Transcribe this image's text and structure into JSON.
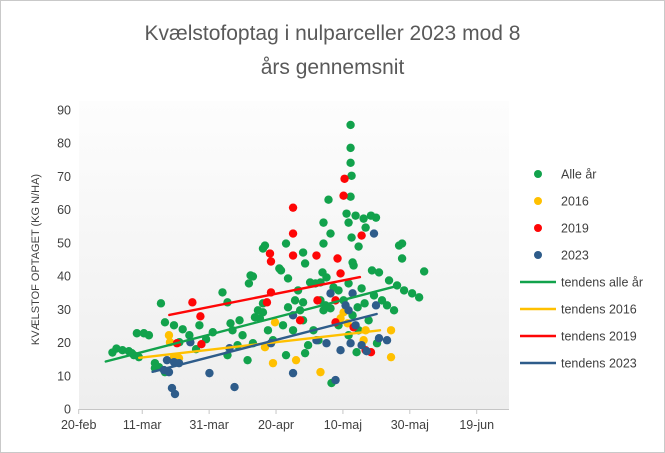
{
  "title": {
    "line1": "Kvælstofoptag i nulparceller 2023 mod 8",
    "line2": "års gennemsnit"
  },
  "colors": {
    "alle_ar": "#12a24c",
    "y2016": "#ffc000",
    "y2019": "#fe0606",
    "y2023": "#2e5c8a",
    "axis_line": "#c6c6c6",
    "tick_label": "#404040",
    "title_text": "#595959",
    "plot_fill_top": "#fdfdfd",
    "plot_fill_bottom": "#eeeeee"
  },
  "chart_data": {
    "type": "scatter",
    "title": "Kvælstofoptag i nulparceller 2023 mod 8 års gennemsnit",
    "xlabel": "",
    "ylabel": "KVÆLSTOF OPTAGET (KG N/HA)",
    "x_unit_note": "x = days since 20-feb",
    "x_tick_labels": [
      "20-feb",
      "11-mar",
      "31-mar",
      "20-apr",
      "10-maj",
      "30-maj",
      "19-jun"
    ],
    "x_tick_days": [
      0,
      19,
      39,
      59,
      79,
      99,
      119
    ],
    "xlim_days": [
      0,
      128
    ],
    "ylim": [
      0,
      90
    ],
    "y_ticks": [
      0,
      10,
      20,
      30,
      40,
      50,
      60,
      70,
      80,
      90
    ],
    "grid": false,
    "legend_position": "right",
    "series": [
      {
        "name": "Alle år",
        "kind": "scatter",
        "color": "#12a24c",
        "points": [
          [
            10,
            17
          ],
          [
            11.2,
            18.2
          ],
          [
            13,
            17.7
          ],
          [
            14.9,
            17.4
          ],
          [
            15.8,
            16.8
          ],
          [
            16.4,
            16.2
          ],
          [
            17.3,
            22.8
          ],
          [
            17.9,
            15.6
          ],
          [
            19.4,
            22.8
          ],
          [
            20.9,
            22.2
          ],
          [
            22.7,
            13.8
          ],
          [
            22.7,
            12.3
          ],
          [
            23.9,
            12.6
          ],
          [
            24.5,
            31.8
          ],
          [
            25.7,
            26.1
          ],
          [
            25.7,
            11.1
          ],
          [
            28.4,
            25.2
          ],
          [
            30,
            20.1
          ],
          [
            31,
            24
          ],
          [
            33,
            22.2
          ],
          [
            35,
            18
          ],
          [
            36,
            25.2
          ],
          [
            38,
            21
          ],
          [
            40,
            23.1
          ],
          [
            42.9,
            35.1
          ],
          [
            44.4,
            32.1
          ],
          [
            44.4,
            16.2
          ],
          [
            45.3,
            25.8
          ],
          [
            45.9,
            23.7
          ],
          [
            47.4,
            19.2
          ],
          [
            48,
            26.7
          ],
          [
            48.9,
            22.2
          ],
          [
            50.4,
            14.7
          ],
          [
            50.8,
            37.8
          ],
          [
            51.3,
            40.2
          ],
          [
            52,
            39.9
          ],
          [
            52,
            19.8
          ],
          [
            52.6,
            27.6
          ],
          [
            53.5,
            29.7
          ],
          [
            54.1,
            27.3
          ],
          [
            55,
            31.8
          ],
          [
            55,
            29.1
          ],
          [
            55,
            48.3
          ],
          [
            55.6,
            49.2
          ],
          [
            56.5,
            23.7
          ],
          [
            58,
            20.7
          ],
          [
            59.9,
            42.3
          ],
          [
            60.4,
            41.7
          ],
          [
            61,
            25.2
          ],
          [
            61.9,
            49.8
          ],
          [
            61.9,
            16.2
          ],
          [
            62.5,
            39.3
          ],
          [
            62.5,
            30.6
          ],
          [
            64,
            23.7
          ],
          [
            64.6,
            32.7
          ],
          [
            65.5,
            35.7
          ],
          [
            66.1,
            29.7
          ],
          [
            67,
            47.1
          ],
          [
            67,
            32.1
          ],
          [
            67,
            26.7
          ],
          [
            67.6,
            43.8
          ],
          [
            67.6,
            16.8
          ],
          [
            68.5,
            19.2
          ],
          [
            69.1,
            38.1
          ],
          [
            70.1,
            23.7
          ],
          [
            70.7,
            37.8
          ],
          [
            71.6,
            20.7
          ],
          [
            72.2,
            38.1
          ],
          [
            72.2,
            32.7
          ],
          [
            72.8,
            41.1
          ],
          [
            73.1,
            56.1
          ],
          [
            73.1,
            49.8
          ],
          [
            73.1,
            29.7
          ],
          [
            73.7,
            31.2
          ],
          [
            74,
            39.6
          ],
          [
            74.6,
            63
          ],
          [
            75.2,
            52.8
          ],
          [
            75.2,
            30.3
          ],
          [
            75.5,
            7.8
          ],
          [
            76.1,
            36.6
          ],
          [
            77.6,
            35.7
          ],
          [
            77.6,
            25.2
          ],
          [
            79.1,
            32.7
          ],
          [
            80,
            58.8
          ],
          [
            80.6,
            56.1
          ],
          [
            80.6,
            37.8
          ],
          [
            80.6,
            22.2
          ],
          [
            81.2,
            85.5
          ],
          [
            81.2,
            78.6
          ],
          [
            81.2,
            74.1
          ],
          [
            81.2,
            63.9
          ],
          [
            81.5,
            70.2
          ],
          [
            81.5,
            51.6
          ],
          [
            81.8,
            44.1
          ],
          [
            81.8,
            28.2
          ],
          [
            82.1,
            43.2
          ],
          [
            82.7,
            58.2
          ],
          [
            83,
            17.1
          ],
          [
            83.3,
            30.6
          ],
          [
            83.6,
            48.9
          ],
          [
            83.6,
            23.7
          ],
          [
            84.5,
            36.3
          ],
          [
            85.1,
            57.3
          ],
          [
            85.4,
            31.8
          ],
          [
            85.7,
            54.6
          ],
          [
            86.6,
            26.7
          ],
          [
            87.3,
            58.2
          ],
          [
            87.6,
            41.7
          ],
          [
            88.2,
            34.2
          ],
          [
            88.8,
            57.6
          ],
          [
            89.1,
            19.8
          ],
          [
            89.7,
            41.1
          ],
          [
            90.6,
            32.7
          ],
          [
            92.1,
            31.2
          ],
          [
            92.7,
            38.7
          ],
          [
            94.2,
            29.7
          ],
          [
            95.1,
            37.2
          ],
          [
            95.7,
            49.2
          ],
          [
            96.6,
            49.8
          ],
          [
            96.6,
            45.3
          ],
          [
            97.2,
            35.7
          ],
          [
            99.6,
            34.8
          ],
          [
            101.7,
            33.6
          ],
          [
            103.2,
            41.4
          ]
        ]
      },
      {
        "name": "2016",
        "kind": "scatter",
        "color": "#ffc000",
        "points": [
          [
            26.9,
            22.2
          ],
          [
            27.2,
            20.1
          ],
          [
            28.4,
            15.6
          ],
          [
            29.9,
            15.3
          ],
          [
            55.6,
            18.6
          ],
          [
            58,
            13.8
          ],
          [
            58.6,
            26.1
          ],
          [
            64.9,
            14.7
          ],
          [
            72.2,
            11.1
          ],
          [
            78.2,
            27.3
          ],
          [
            79.1,
            29.1
          ],
          [
            80.3,
            25.8
          ],
          [
            85.1,
            20.7
          ],
          [
            85.7,
            23.7
          ],
          [
            93.3,
            23.7
          ],
          [
            93.3,
            15.6
          ]
        ]
      },
      {
        "name": "2019",
        "kind": "scatter",
        "color": "#fe0606",
        "points": [
          [
            29.3,
            19.8
          ],
          [
            33.9,
            32.1
          ],
          [
            36.3,
            27.9
          ],
          [
            36.6,
            19.5
          ],
          [
            56.2,
            32.1
          ],
          [
            57.1,
            46.8
          ],
          [
            57.4,
            44.4
          ],
          [
            57.4,
            35.1
          ],
          [
            64,
            60.6
          ],
          [
            64,
            52.8
          ],
          [
            64,
            46.2
          ],
          [
            66.1,
            26.7
          ],
          [
            71,
            46.2
          ],
          [
            71.3,
            32.7
          ],
          [
            76.7,
            32.7
          ],
          [
            76.7,
            26.1
          ],
          [
            77.3,
            45.3
          ],
          [
            78.2,
            40.8
          ],
          [
            79.4,
            69.3
          ],
          [
            79.1,
            64.2
          ],
          [
            82.1,
            24.6
          ],
          [
            84.5,
            52.2
          ],
          [
            85.7,
            17.7
          ],
          [
            87.3,
            17.1
          ]
        ]
      },
      {
        "name": "2023",
        "kind": "scatter",
        "color": "#2e5c8a",
        "points": [
          [
            25.4,
            11.7
          ],
          [
            26.3,
            14.7
          ],
          [
            26.9,
            11.1
          ],
          [
            27.8,
            6.3
          ],
          [
            28.4,
            14.1
          ],
          [
            28.7,
            4.5
          ],
          [
            29.9,
            13.8
          ],
          [
            33.3,
            20.1
          ],
          [
            39,
            10.8
          ],
          [
            45,
            18.3
          ],
          [
            46.5,
            6.6
          ],
          [
            57.4,
            19.8
          ],
          [
            64,
            10.8
          ],
          [
            64,
            28.2
          ],
          [
            71,
            20.7
          ],
          [
            74,
            19.8
          ],
          [
            75.2,
            34.8
          ],
          [
            76.7,
            8.7
          ],
          [
            78.2,
            17.7
          ],
          [
            79.7,
            31.2
          ],
          [
            80.6,
            29.7
          ],
          [
            81.2,
            19.8
          ],
          [
            81.8,
            34.8
          ],
          [
            82.7,
            25.2
          ],
          [
            84.5,
            19.2
          ],
          [
            86,
            17.4
          ],
          [
            88.2,
            52.8
          ],
          [
            88.8,
            31.2
          ],
          [
            89.7,
            21.3
          ],
          [
            92.1,
            20.7
          ]
        ]
      },
      {
        "name": "tendens alle år",
        "kind": "trend",
        "color": "#12a24c",
        "points": [
          [
            8,
            14.3
          ],
          [
            95,
            37
          ]
        ]
      },
      {
        "name": "tendens 2016",
        "kind": "trend",
        "color": "#ffc000",
        "points": [
          [
            18,
            15.4
          ],
          [
            90,
            23.7
          ]
        ]
      },
      {
        "name": "tendens 2019",
        "kind": "trend",
        "color": "#fe0606",
        "points": [
          [
            27,
            28.3
          ],
          [
            84,
            39.7
          ]
        ]
      },
      {
        "name": "tendens 2023",
        "kind": "trend",
        "color": "#2e5c8a",
        "points": [
          [
            22,
            11.2
          ],
          [
            89,
            28.6
          ]
        ]
      }
    ]
  }
}
